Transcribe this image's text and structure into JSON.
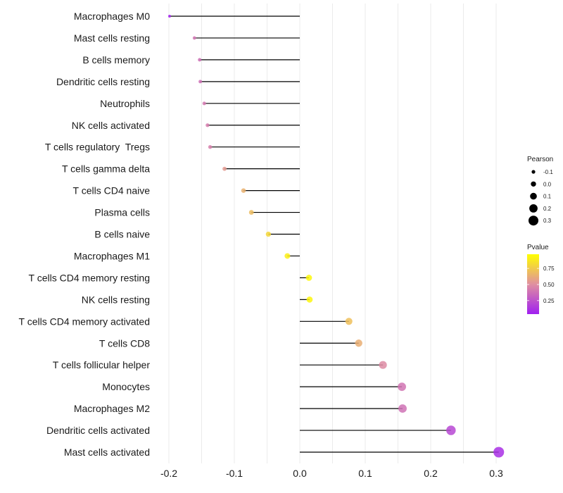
{
  "chart_data": {
    "type": "lollipop",
    "title": "",
    "xlabel": "",
    "ylabel": "",
    "xlim": [
      -0.2,
      0.3
    ],
    "x_ticks": [
      -0.2,
      -0.1,
      0.0,
      0.1,
      0.2,
      0.3
    ],
    "x_tick_labels": [
      "-0.2",
      "-0.1",
      "0.0",
      "0.1",
      "0.2",
      "0.3"
    ],
    "grid": true,
    "points": [
      {
        "cell": "Macrophages M0",
        "pearson": -0.199,
        "pvalue": 0.02
      },
      {
        "cell": "Mast cells resting",
        "pearson": -0.161,
        "pvalue": 0.38
      },
      {
        "cell": "B cells memory",
        "pearson": -0.153,
        "pvalue": 0.36
      },
      {
        "cell": "Dendritic cells resting",
        "pearson": -0.152,
        "pvalue": 0.36
      },
      {
        "cell": "Neutrophils",
        "pearson": -0.146,
        "pvalue": 0.4
      },
      {
        "cell": "NK cells activated",
        "pearson": -0.141,
        "pvalue": 0.42
      },
      {
        "cell": "T cells regulatory  Tregs",
        "pearson": -0.137,
        "pvalue": 0.43
      },
      {
        "cell": "T cells gamma delta",
        "pearson": -0.115,
        "pvalue": 0.55
      },
      {
        "cell": "T cells CD4 naive",
        "pearson": -0.086,
        "pvalue": 0.65
      },
      {
        "cell": "Plasma cells",
        "pearson": -0.074,
        "pvalue": 0.7
      },
      {
        "cell": "B cells naive",
        "pearson": -0.048,
        "pvalue": 0.82
      },
      {
        "cell": "Macrophages M1",
        "pearson": -0.019,
        "pvalue": 0.93
      },
      {
        "cell": "T cells CD4 memory resting",
        "pearson": 0.014,
        "pvalue": 0.97
      },
      {
        "cell": "NK cells resting",
        "pearson": 0.015,
        "pvalue": 0.96
      },
      {
        "cell": "T cells CD4 memory activated",
        "pearson": 0.075,
        "pvalue": 0.72
      },
      {
        "cell": "T cells CD8",
        "pearson": 0.09,
        "pvalue": 0.64
      },
      {
        "cell": "T cells follicular helper",
        "pearson": 0.127,
        "pvalue": 0.48
      },
      {
        "cell": "Monocytes",
        "pearson": 0.156,
        "pvalue": 0.38
      },
      {
        "cell": "Macrophages M2",
        "pearson": 0.157,
        "pvalue": 0.37
      },
      {
        "cell": "Dendritic cells activated",
        "pearson": 0.231,
        "pvalue": 0.18
      },
      {
        "cell": "Mast cells activated",
        "pearson": 0.304,
        "pvalue": 0.07
      }
    ],
    "legend": {
      "size": {
        "title": "Pearson",
        "entries": [
          {
            "label": "-0.1",
            "value": -0.1
          },
          {
            "label": "0.0",
            "value": 0.0
          },
          {
            "label": "0.1",
            "value": 0.1
          },
          {
            "label": "0.2",
            "value": 0.2
          },
          {
            "label": "0.3",
            "value": 0.3
          }
        ]
      },
      "color": {
        "title": "Pvalue",
        "ticks": [
          {
            "label": "0.75",
            "value": 0.75
          },
          {
            "label": "0.50",
            "value": 0.5
          },
          {
            "label": "0.25",
            "value": 0.25
          }
        ],
        "range": [
          0.0,
          1.0
        ],
        "low_color": "#a020f0",
        "mid_color": "#e08fa0",
        "high_color": "#ffff00"
      },
      "placement": "right"
    },
    "colors": {
      "segment": "#000000",
      "grid": "#ebebeb"
    }
  }
}
